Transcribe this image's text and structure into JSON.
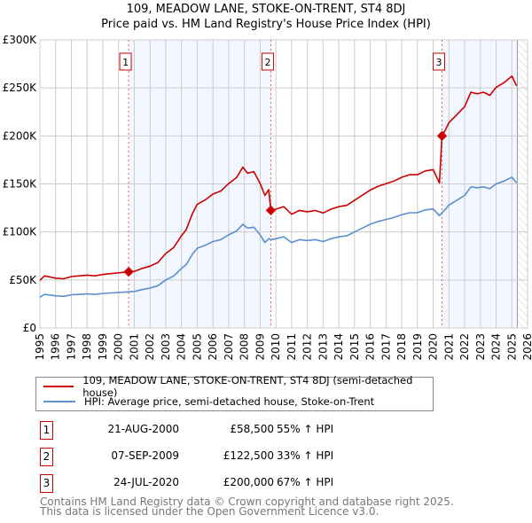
{
  "title_line1": "109, MEADOW LANE, STOKE-ON-TRENT, ST4 8DJ",
  "title_line2": "Price paid vs. HM Land Registry's House Price Index (HPI)",
  "legend": [
    {
      "label": "109, MEADOW LANE, STOKE-ON-TRENT, ST4 8DJ (semi-detached house)",
      "color": "#cc0000"
    },
    {
      "label": "HPI: Average price, semi-detached house, Stoke-on-Trent",
      "color": "#5b8fd0"
    }
  ],
  "sales": [
    {
      "num": "1",
      "date": "21-AUG-2000",
      "price": "£58,500",
      "pct": "55% ↑ HPI"
    },
    {
      "num": "2",
      "date": "07-SEP-2009",
      "price": "£122,500",
      "pct": "33% ↑ HPI"
    },
    {
      "num": "3",
      "date": "24-JUL-2020",
      "price": "£200,000",
      "pct": "67% ↑ HPI"
    }
  ],
  "footer_line1": "Contains HM Land Registry data © Crown copyright and database right 2025.",
  "footer_line2": "This data is licensed under the Open Government Licence v3.0.",
  "chart_data": {
    "type": "line",
    "xlim": [
      1995,
      2026
    ],
    "ylim": [
      0,
      300000
    ],
    "x_ticks": [
      "1995",
      "1996",
      "1997",
      "1998",
      "1999",
      "2000",
      "2001",
      "2002",
      "2003",
      "2004",
      "2005",
      "2006",
      "2007",
      "2008",
      "2009",
      "2010",
      "2011",
      "2012",
      "2013",
      "2014",
      "2015",
      "2016",
      "2017",
      "2018",
      "2019",
      "2020",
      "2021",
      "2022",
      "2023",
      "2024",
      "2025",
      "2026"
    ],
    "y_ticks": [
      {
        "v": 0,
        "label": "£0"
      },
      {
        "v": 50000,
        "label": "£50K"
      },
      {
        "v": 100000,
        "label": "£100K"
      },
      {
        "v": 150000,
        "label": "£150K"
      },
      {
        "v": 200000,
        "label": "£200K"
      },
      {
        "v": 250000,
        "label": "£250K"
      },
      {
        "v": 300000,
        "label": "£300K"
      }
    ],
    "grid": true,
    "sale_points": [
      {
        "num": "1",
        "x": 2000.64,
        "y": 58500
      },
      {
        "num": "2",
        "x": 2009.68,
        "y": 122500
      },
      {
        "num": "3",
        "x": 2020.56,
        "y": 200000
      }
    ],
    "forecast_from": 2025.35,
    "series": [
      {
        "name": "price_paid",
        "color": "#cc0000",
        "x": [
          1995,
          1995.3,
          1996,
          1996.5,
          1997,
          1997.5,
          1998,
          1998.5,
          1999,
          1999.5,
          2000,
          2000.64,
          2001,
          2001.5,
          2002,
          2002.5,
          2003,
          2003.5,
          2004,
          2004.3,
          2004.7,
          2005,
          2005.5,
          2006,
          2006.5,
          2007,
          2007.5,
          2007.9,
          2008.2,
          2008.6,
          2009,
          2009.3,
          2009.55,
          2009.68,
          2010,
          2010.5,
          2011,
          2011.5,
          2012,
          2012.5,
          2013,
          2013.5,
          2014,
          2014.5,
          2015,
          2015.5,
          2016,
          2016.5,
          2017,
          2017.5,
          2018,
          2018.5,
          2019,
          2019.5,
          2020,
          2020.4,
          2020.56,
          2020.8,
          2021,
          2021.5,
          2022,
          2022.4,
          2022.8,
          2023.2,
          2023.6,
          2024,
          2024.5,
          2025,
          2025.3
        ],
        "y": [
          49600,
          54300,
          51900,
          51200,
          53500,
          54300,
          55000,
          54300,
          55800,
          56600,
          57400,
          58500,
          58900,
          62000,
          64300,
          68200,
          77500,
          83700,
          96100,
          102300,
          119400,
          128700,
          133300,
          139500,
          142600,
          150400,
          156600,
          167400,
          161200,
          162800,
          150400,
          138000,
          144000,
          122500,
          123700,
          126400,
          118400,
          122400,
          121000,
          122400,
          119700,
          123700,
          126400,
          127700,
          133000,
          138300,
          143600,
          147600,
          150300,
          153000,
          156900,
          159600,
          159600,
          163600,
          164900,
          151000,
          200000,
          207000,
          213800,
          222100,
          230500,
          245500,
          243800,
          245500,
          242200,
          250500,
          255500,
          262200,
          252200
        ]
      },
      {
        "name": "hpi",
        "color": "#5b8fd0",
        "x": [
          1995,
          1995.3,
          1996,
          1996.5,
          1997,
          1997.5,
          1998,
          1998.5,
          1999,
          1999.5,
          2000,
          2000.64,
          2001,
          2001.5,
          2002,
          2002.5,
          2003,
          2003.5,
          2004,
          2004.3,
          2004.7,
          2005,
          2005.5,
          2006,
          2006.5,
          2007,
          2007.5,
          2007.9,
          2008.2,
          2008.6,
          2009,
          2009.3,
          2009.55,
          2009.68,
          2010,
          2010.5,
          2011,
          2011.5,
          2012,
          2012.5,
          2013,
          2013.5,
          2014,
          2014.5,
          2015,
          2015.5,
          2016,
          2016.5,
          2017,
          2017.5,
          2018,
          2018.5,
          2019,
          2019.5,
          2020,
          2020.4,
          2020.56,
          2020.8,
          2021,
          2021.5,
          2022,
          2022.4,
          2022.8,
          2023.2,
          2023.6,
          2024,
          2024.5,
          2025,
          2025.3
        ],
        "y": [
          32000,
          35000,
          33500,
          33000,
          34500,
          35000,
          35500,
          35000,
          36000,
          36500,
          37000,
          37700,
          38000,
          40000,
          41500,
          44000,
          50000,
          54000,
          62000,
          66000,
          77000,
          83000,
          86000,
          90000,
          92000,
          97000,
          101000,
          108000,
          104000,
          105000,
          97000,
          89000,
          93000,
          92000,
          93000,
          95000,
          89000,
          92000,
          91000,
          92000,
          90000,
          93000,
          95000,
          96000,
          100000,
          104000,
          108000,
          111000,
          113000,
          115000,
          118000,
          120000,
          120000,
          123000,
          124000,
          117000,
          120000,
          124000,
          128000,
          133000,
          138000,
          147000,
          146000,
          147000,
          145000,
          150000,
          153000,
          157000,
          151000
        ]
      }
    ]
  }
}
